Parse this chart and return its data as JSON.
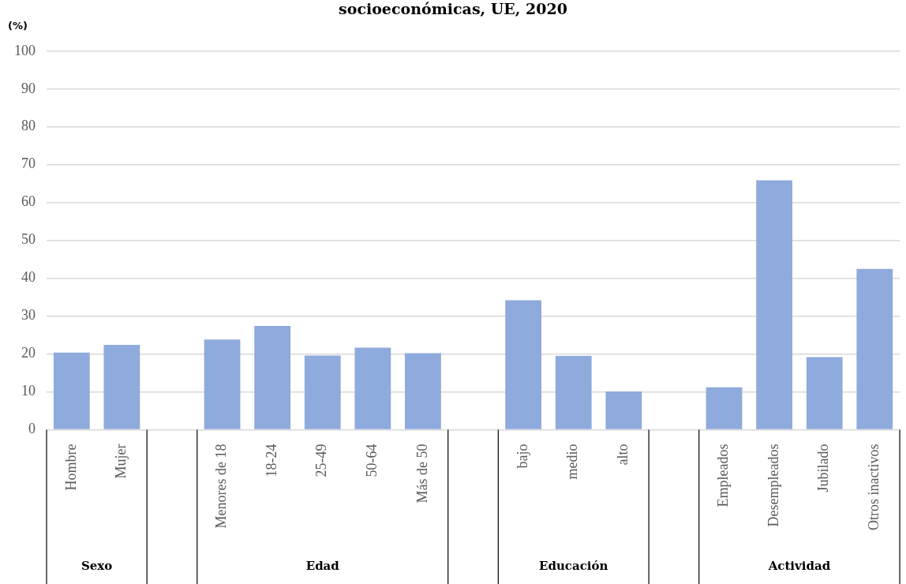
{
  "chart_data": {
    "type": "bar",
    "title": "socioeconómicas, UE, 2020",
    "ylabel": "(%)",
    "categories": [
      "Hombre",
      "Mujer",
      null,
      "Menores de 18",
      "18-24",
      "25-49",
      "50-64",
      "Más de 50",
      null,
      "bajo",
      "medio",
      "alto",
      null,
      "Empleados",
      "Desempleados",
      "Jubilado",
      "Otros inactivos"
    ],
    "values": [
      20.4,
      22.4,
      null,
      23.8,
      27.4,
      19.6,
      21.7,
      20.2,
      null,
      34.2,
      19.5,
      10.1,
      null,
      11.2,
      65.9,
      19.2,
      42.5
    ],
    "color": "#8faadc",
    "ylim": [
      0,
      100
    ],
    "yticks": [
      0,
      10,
      20,
      30,
      40,
      50,
      60,
      70,
      80,
      90,
      100
    ],
    "grid": "y",
    "legend": false,
    "annotations": [
      "Sexo",
      "Edad",
      "Educación",
      "Actividad"
    ]
  }
}
